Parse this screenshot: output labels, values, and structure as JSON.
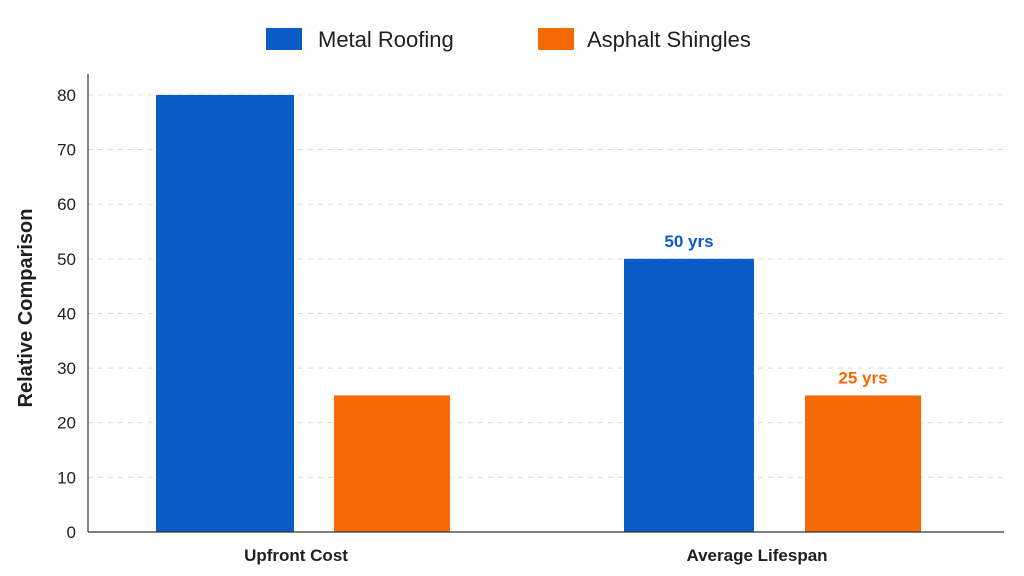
{
  "chart_data": {
    "type": "bar",
    "title": "",
    "xlabel": "",
    "ylabel": "Relative Comparison",
    "categories": [
      "Upfront Cost",
      "Average Lifespan"
    ],
    "ylim": [
      0,
      82
    ],
    "yticks": [
      0,
      10,
      20,
      30,
      40,
      50,
      60,
      70,
      80
    ],
    "grid": true,
    "legend_position": "top-center",
    "series": [
      {
        "name": "Metal Roofing",
        "color": "#0b5cc7",
        "values": [
          80,
          50
        ],
        "data_labels": [
          "",
          "50 yrs"
        ]
      },
      {
        "name": "Asphalt Shingles",
        "color": "#f66a06",
        "values": [
          25,
          25
        ],
        "data_labels": [
          "",
          "25 yrs"
        ]
      }
    ]
  }
}
